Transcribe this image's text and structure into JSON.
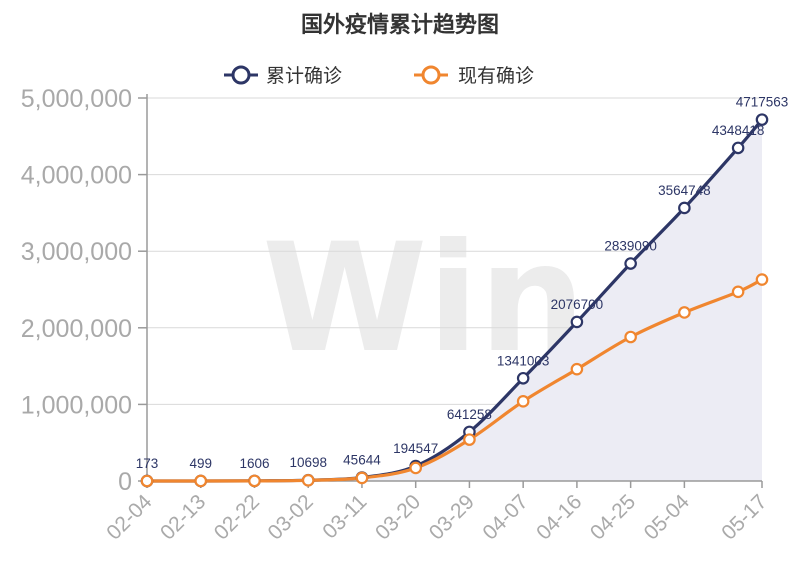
{
  "chart_data": {
    "type": "line",
    "title": "国外疫情累计趋势图",
    "watermark": "Win.d",
    "x_ticks": [
      "02-04",
      "02-13",
      "02-22",
      "03-02",
      "03-11",
      "03-20",
      "03-29",
      "04-07",
      "04-16",
      "04-25",
      "05-04",
      "05-17"
    ],
    "y_ticks": [
      "0",
      "1,000,000",
      "2,000,000",
      "3,000,000",
      "4,000,000",
      "5,000,000"
    ],
    "ylim": [
      0,
      5000000
    ],
    "grid": true,
    "legend_position": "top-center",
    "series": [
      {
        "name": "累计确诊",
        "color": "#2d3666",
        "area_fill": "#ececf4",
        "points": [
          {
            "x": "02-04",
            "y": 173,
            "label": "173"
          },
          {
            "x": "02-13",
            "y": 499,
            "label": "499"
          },
          {
            "x": "02-22",
            "y": 1606,
            "label": "1606"
          },
          {
            "x": "03-02",
            "y": 10698,
            "label": "10698"
          },
          {
            "x": "03-11",
            "y": 45644,
            "label": "45644"
          },
          {
            "x": "03-20",
            "y": 194547,
            "label": "194547"
          },
          {
            "x": "03-29",
            "y": 641258,
            "label": "641258"
          },
          {
            "x": "04-07",
            "y": 1341003,
            "label": "1341003"
          },
          {
            "x": "04-16",
            "y": 2076700,
            "label": "2076700"
          },
          {
            "x": "04-25",
            "y": 2839090,
            "label": "2839090"
          },
          {
            "x": "05-04",
            "y": 3564748,
            "label": "3564748"
          },
          {
            "x": "05-13",
            "y": 4348418,
            "label": "4348418"
          },
          {
            "x": "05-17",
            "y": 4717563,
            "label": "4717563"
          }
        ]
      },
      {
        "name": "现有确诊",
        "color": "#f0862f",
        "points": [
          {
            "x": "02-04",
            "y": 150
          },
          {
            "x": "02-13",
            "y": 420
          },
          {
            "x": "02-22",
            "y": 1400
          },
          {
            "x": "03-02",
            "y": 9000
          },
          {
            "x": "03-11",
            "y": 40000
          },
          {
            "x": "03-20",
            "y": 170000
          },
          {
            "x": "03-29",
            "y": 540000
          },
          {
            "x": "04-07",
            "y": 1040000
          },
          {
            "x": "04-16",
            "y": 1460000
          },
          {
            "x": "04-25",
            "y": 1880000
          },
          {
            "x": "05-04",
            "y": 2200000
          },
          {
            "x": "05-13",
            "y": 2470000
          },
          {
            "x": "05-17",
            "y": 2630000
          }
        ]
      }
    ]
  }
}
